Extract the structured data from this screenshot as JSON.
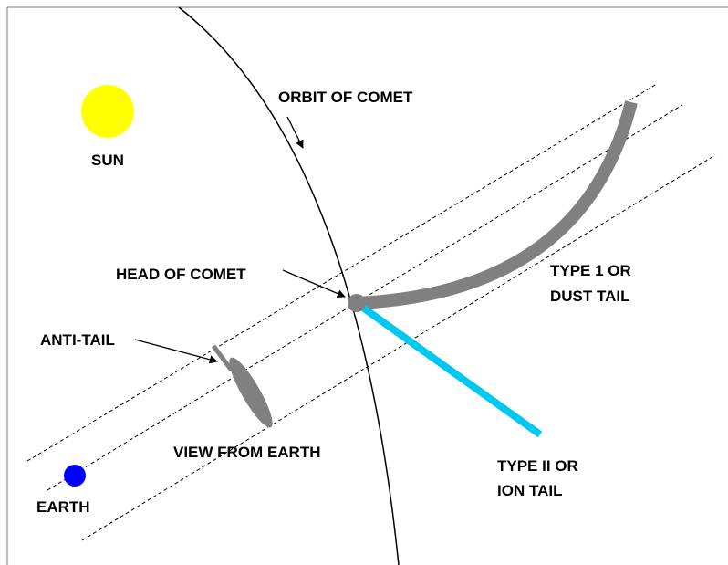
{
  "labels": {
    "orbit": "ORBIT OF COMET",
    "sun": "SUN",
    "head": "HEAD OF COMET",
    "dust_tail": [
      "TYPE 1 OR",
      "DUST TAIL"
    ],
    "anti_tail": "ANTI-TAIL",
    "view": "VIEW FROM EARTH",
    "ion_tail": [
      "TYPE II OR",
      "ION TAIL"
    ],
    "earth": "EARTH"
  }
}
